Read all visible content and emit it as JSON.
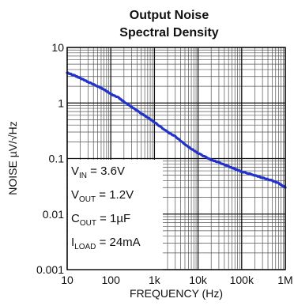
{
  "chart_data": {
    "type": "line",
    "title_line1": "Output Noise",
    "title_line2": "Spectral Density",
    "xlabel": "FREQUENCY (Hz)",
    "ylabel": "NOISE µV/√Hz",
    "x_scale": "log",
    "y_scale": "log",
    "xlim": [
      10,
      1000000
    ],
    "ylim": [
      0.001,
      10
    ],
    "grid": true,
    "x_ticks": [
      {
        "value": 10,
        "label": "10"
      },
      {
        "value": 100,
        "label": "100"
      },
      {
        "value": 1000,
        "label": "1k"
      },
      {
        "value": 10000,
        "label": "10k"
      },
      {
        "value": 100000,
        "label": "100k"
      },
      {
        "value": 1000000,
        "label": "1M"
      }
    ],
    "y_ticks": [
      {
        "value": 10,
        "label": "10"
      },
      {
        "value": 1,
        "label": "1"
      },
      {
        "value": 0.1,
        "label": "0.1"
      },
      {
        "value": 0.01,
        "label": "0.01"
      },
      {
        "value": 0.001,
        "label": "0.001"
      }
    ],
    "series": [
      {
        "color": "#2233cc",
        "x": [
          10,
          15,
          20,
          30,
          50,
          70,
          100,
          150,
          200,
          300,
          500,
          700,
          1000,
          2000,
          3000,
          5000,
          7000,
          10000,
          20000,
          30000,
          50000,
          70000,
          100000,
          200000,
          300000,
          500000,
          700000,
          1000000
        ],
        "y": [
          3.5,
          3.1,
          2.8,
          2.4,
          2.0,
          1.75,
          1.45,
          1.25,
          1.05,
          0.85,
          0.65,
          0.55,
          0.45,
          0.3,
          0.25,
          0.18,
          0.15,
          0.125,
          0.095,
          0.085,
          0.072,
          0.065,
          0.058,
          0.05,
          0.045,
          0.04,
          0.036,
          0.03
        ]
      }
    ],
    "annotations": [
      {
        "main": "V",
        "sub": "IN",
        "rest": " = 3.6V"
      },
      {
        "main": "V",
        "sub": "OUT",
        "rest": " = 1.2V"
      },
      {
        "main": "C",
        "sub": "OUT",
        "rest": " = 1µF"
      },
      {
        "main": "I",
        "sub": "LOAD",
        "rest": " = 24mA"
      }
    ]
  }
}
